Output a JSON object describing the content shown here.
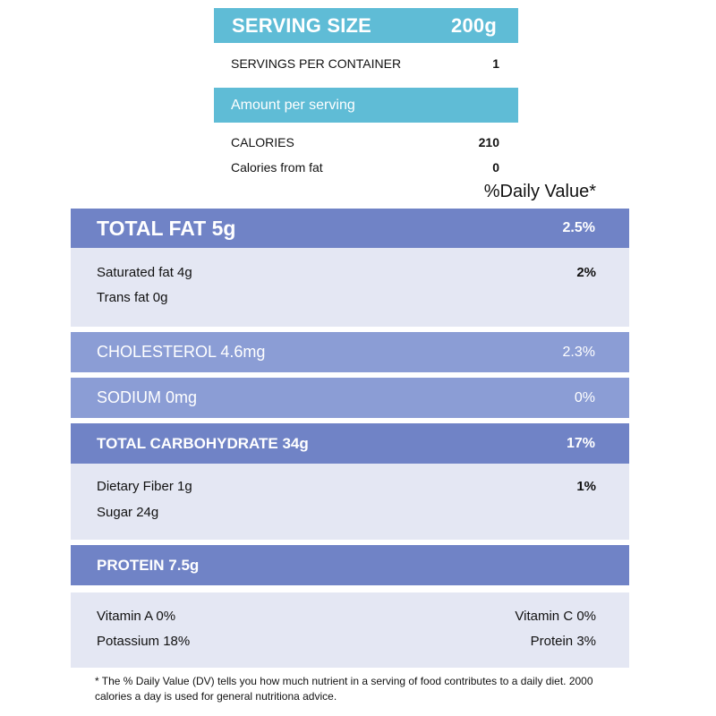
{
  "serving": {
    "label": "SERVING SIZE",
    "value": "200g",
    "servings_label": "SERVINGS PER CONTAINER",
    "servings_value": "1"
  },
  "amount": {
    "label": "Amount per serving",
    "calories_label": "CALORIES",
    "calories_value": "210",
    "fat_calories_label": "Calories from fat",
    "fat_calories_value": "0"
  },
  "daily_value_header": "%Daily Value*",
  "total_fat": {
    "label": "TOTAL FAT 5g",
    "pct": "2.5%",
    "saturated_label": "Saturated fat 4g",
    "saturated_pct": "2%",
    "trans_label": "Trans fat 0g"
  },
  "cholesterol": {
    "label": "CHOLESTEROL 4.6mg",
    "pct": "2.3%"
  },
  "sodium": {
    "label": "SODIUM 0mg",
    "pct": "0%"
  },
  "total_carb": {
    "label": "TOTAL CARBOHYDRATE 34g",
    "pct": "17%",
    "fiber_label": "Dietary Fiber 1g",
    "fiber_pct": "1%",
    "sugar_label": "Sugar 24g"
  },
  "protein": {
    "label": "PROTEIN 7.5g"
  },
  "vitamins": {
    "vitamin_a": "Vitamin A 0%",
    "vitamin_c": "Vitamin C 0%",
    "potassium": "Potassium 18%",
    "protein": "Protein 3%"
  },
  "footnote": "* The % Daily Value (DV) tells you how much nutrient in a serving of food contributes to a daily diet. 2000 calories a day is used for general nutritiona advice.",
  "colors": {
    "cyan_bar": "#5fbcd6",
    "dark_bar": "#7083c6",
    "light_bar": "#8b9dd5",
    "panel": "#e4e7f3"
  }
}
